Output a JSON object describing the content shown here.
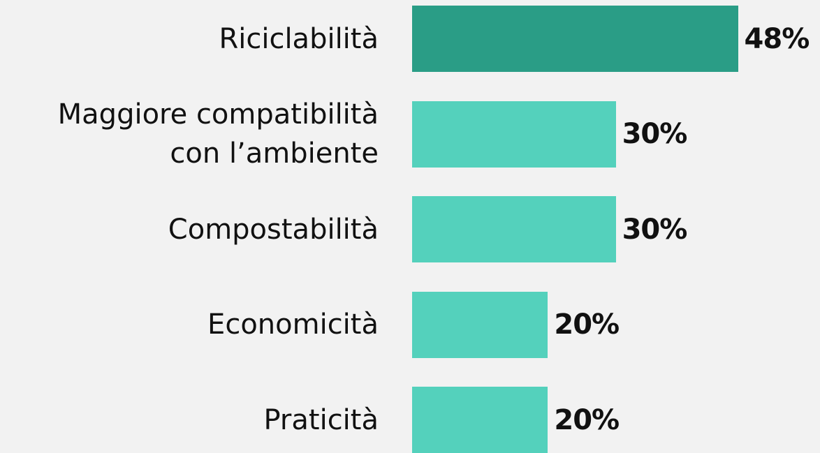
{
  "chart_data": {
    "type": "bar",
    "orientation": "horizontal",
    "categories": [
      "Riciclabilità",
      "Maggiore compatibilità\ncon l’ambiente",
      "Compostabilità",
      "Economicità",
      "Praticità"
    ],
    "values": [
      48,
      30,
      30,
      20,
      20
    ],
    "value_labels": [
      "48%",
      "30%",
      "30%",
      "20%",
      "20%"
    ],
    "colors": [
      "#2a9d86",
      "#54d1bc",
      "#54d1bc",
      "#54d1bc",
      "#54d1bc"
    ]
  }
}
